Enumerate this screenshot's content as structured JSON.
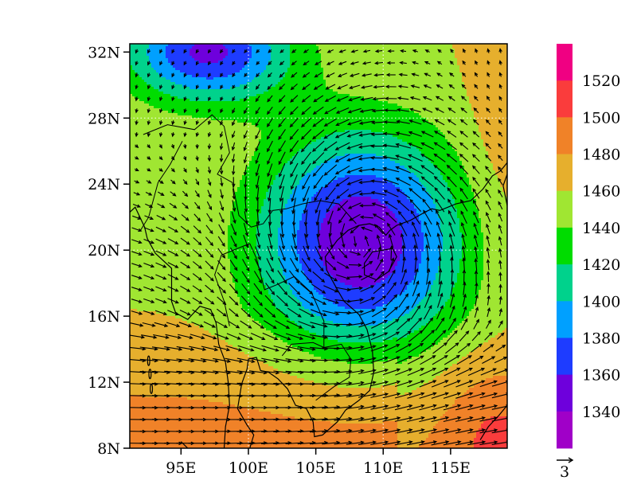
{
  "chart_data": {
    "type": "heatmap",
    "title": "",
    "xlabel": "",
    "ylabel": "",
    "x_ticks": [
      {
        "lon": 95,
        "label": "95E"
      },
      {
        "lon": 100,
        "label": "100E"
      },
      {
        "lon": 105,
        "label": "105E"
      },
      {
        "lon": 110,
        "label": "110E"
      },
      {
        "lon": 115,
        "label": "115E"
      }
    ],
    "y_ticks": [
      {
        "lat": 8,
        "label": "8N"
      },
      {
        "lat": 12,
        "label": "12N"
      },
      {
        "lat": 16,
        "label": "16N"
      },
      {
        "lat": 20,
        "label": "20N"
      },
      {
        "lat": 24,
        "label": "24N"
      },
      {
        "lat": 28,
        "label": "28N"
      },
      {
        "lat": 32,
        "label": "32N"
      }
    ],
    "xlim": [
      91.2,
      119.2
    ],
    "ylim": [
      8,
      32.5
    ],
    "grid": "dotted white lines at 100E and 110E, 20N and 28N",
    "contour_levels": [
      1340,
      1360,
      1380,
      1400,
      1420,
      1440,
      1460,
      1480,
      1500,
      1520
    ],
    "colorbar": {
      "labels": [
        "1340",
        "1360",
        "1380",
        "1400",
        "1420",
        "1440",
        "1460",
        "1480",
        "1500",
        "1520"
      ],
      "colors": [
        "#a000c8",
        "#6e00dc",
        "#1e3cff",
        "#00a0ff",
        "#00d28c",
        "#00dc00",
        "#a0e632",
        "#e6af2d",
        "#f08228",
        "#fa3c3c",
        "#f00082"
      ],
      "placement": "right"
    },
    "field_features": [
      {
        "name": "low-center",
        "lon": 108.3,
        "lat": 20.5,
        "value": 1340
      },
      {
        "name": "tibet-low",
        "lon": 97,
        "lat": 31.5,
        "value": 1350
      },
      {
        "name": "subtropical-high-sw",
        "lon": 94,
        "lat": 9,
        "value": 1490
      },
      {
        "name": "subtropical-high-se",
        "lon": 118,
        "lat": 10,
        "value": 1490
      },
      {
        "name": "east-ridge",
        "lon": 118,
        "lat": 27,
        "value": 1460
      }
    ],
    "wind_vectors": "cyclonic circulation around the low near 108E 21N; strong westerly flow south of 16N",
    "reference_vector": {
      "label": "3",
      "magnitude": 3
    }
  }
}
